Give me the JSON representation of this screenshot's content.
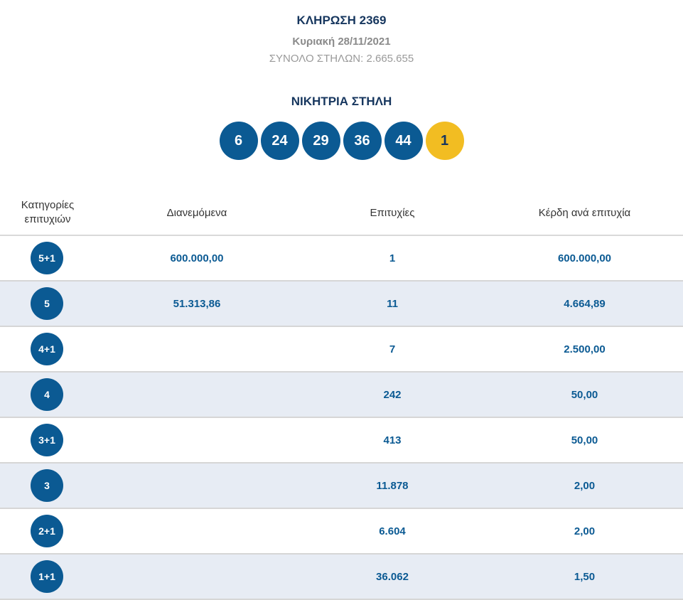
{
  "draw": {
    "title": "ΚΛΗΡΩΣΗ 2369",
    "date": "Κυριακή 28/11/2021",
    "total_columns": "ΣΥΝΟΛΟ ΣΤΗΛΩΝ: 2.665.655"
  },
  "winning_column": {
    "title": "ΝΙΚΗΤΡΙΑ ΣΤΗΛΗ",
    "numbers": [
      "6",
      "24",
      "29",
      "36",
      "44"
    ],
    "joker": "1"
  },
  "table": {
    "headers": {
      "category": "Κατηγορίες επιτυχιών",
      "distributed": "Διανεμόμενα",
      "winners": "Επιτυχίες",
      "prize_per_winner": "Κέρδη ανά επιτυχία"
    },
    "rows": [
      {
        "category": "5+1",
        "distributed": "600.000,00",
        "winners": "1",
        "prize": "600.000,00"
      },
      {
        "category": "5",
        "distributed": "51.313,86",
        "winners": "11",
        "prize": "4.664,89"
      },
      {
        "category": "4+1",
        "distributed": "",
        "winners": "7",
        "prize": "2.500,00"
      },
      {
        "category": "4",
        "distributed": "",
        "winners": "242",
        "prize": "50,00"
      },
      {
        "category": "3+1",
        "distributed": "",
        "winners": "413",
        "prize": "50,00"
      },
      {
        "category": "3",
        "distributed": "",
        "winners": "11.878",
        "prize": "2,00"
      },
      {
        "category": "2+1",
        "distributed": "",
        "winners": "6.604",
        "prize": "2,00"
      },
      {
        "category": "1+1",
        "distributed": "",
        "winners": "36.062",
        "prize": "1,50"
      }
    ]
  },
  "colors": {
    "primary_blue": "#0b5a93",
    "joker_yellow": "#f2bd22",
    "heading_navy": "#16365e",
    "alt_row_bg": "#e7ecf4"
  }
}
